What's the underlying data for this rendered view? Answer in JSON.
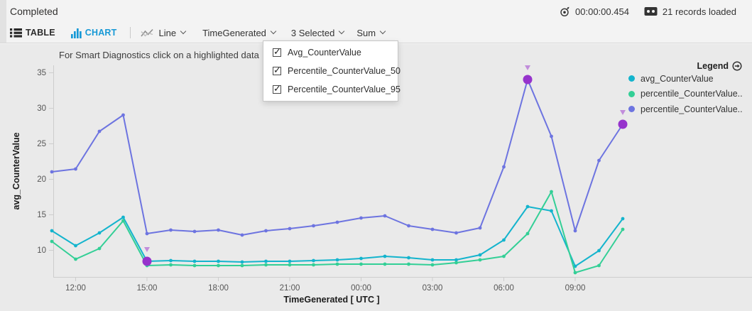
{
  "status_bar": {
    "status": "Completed",
    "elapsed_time": "00:00:00.454",
    "records_loaded": "21 records loaded"
  },
  "toolbar": {
    "accent_blue": "#1799d6",
    "table_tab": "TABLE",
    "chart_tab": "CHART",
    "chart_type_label": "Line",
    "x_axis_field_label": "TimeGenerated",
    "y_axis_fields_label": "3 Selected",
    "aggregation_label": "Sum"
  },
  "dropdown": {
    "items": [
      {
        "label": "Avg_CounterValue",
        "checked": true
      },
      {
        "label": "Percentile_CounterValue_50",
        "checked": true
      },
      {
        "label": "Percentile_CounterValue_95",
        "checked": true
      }
    ]
  },
  "chart": {
    "title": "For Smart Diagnostics click on a highlighted data",
    "legend_title": "Legend",
    "legend": [
      {
        "label": "avg_CounterValue",
        "color": "#14b4cd"
      },
      {
        "label": "percentile_CounterValue..",
        "color": "#33cf96"
      },
      {
        "label": "percentile_CounterValue..",
        "color": "#6d74e0"
      }
    ]
  },
  "chart_data": {
    "type": "line",
    "xlabel": "TimeGenerated [ UTC ]",
    "ylabel": "avg_CounterValue",
    "ylim": [
      6.2,
      35.8
    ],
    "grid": false,
    "legend_position": "top-right",
    "y_ticks": [
      10,
      15,
      20,
      25,
      30,
      35
    ],
    "x_tick_labels": [
      "12:00",
      "15:00",
      "18:00",
      "21:00",
      "00:00",
      "03:00",
      "06:00",
      "09:00"
    ],
    "x_tick_indices": [
      1,
      4,
      7,
      10,
      13,
      16,
      19,
      22
    ],
    "x": [
      "11:00",
      "12:00",
      "13:00",
      "14:00",
      "15:00",
      "16:00",
      "17:00",
      "18:00",
      "19:00",
      "20:00",
      "21:00",
      "22:00",
      "23:00",
      "00:00",
      "01:00",
      "02:00",
      "03:00",
      "04:00",
      "05:00",
      "06:00",
      "07:00",
      "08:00",
      "09:00",
      "10:00",
      "11:00"
    ],
    "series": [
      {
        "name": "avg_CounterValue",
        "color": "#14b4cd",
        "values": [
          12.7,
          10.6,
          12.4,
          14.6,
          8.4,
          8.5,
          8.4,
          8.4,
          8.3,
          8.4,
          8.4,
          8.5,
          8.6,
          8.8,
          9.1,
          8.9,
          8.6,
          8.6,
          9.3,
          11.4,
          16.1,
          15.5,
          7.7,
          9.9,
          14.4
        ]
      },
      {
        "name": "percentile_CounterValue_50",
        "color": "#33cf96",
        "values": [
          11.2,
          8.7,
          10.2,
          14.1,
          7.8,
          7.9,
          7.8,
          7.8,
          7.8,
          7.9,
          7.9,
          7.9,
          8.0,
          8.0,
          8.0,
          8.0,
          7.9,
          8.2,
          8.6,
          9.1,
          12.3,
          18.2,
          6.8,
          7.8,
          12.9
        ]
      },
      {
        "name": "percentile_CounterValue_95",
        "color": "#6d74e0",
        "values": [
          21.0,
          21.4,
          26.7,
          29.0,
          12.3,
          12.8,
          12.6,
          12.8,
          12.1,
          12.7,
          13.0,
          13.4,
          13.9,
          14.5,
          14.8,
          13.4,
          12.9,
          12.4,
          13.1,
          21.7,
          34.0,
          26.0,
          12.7,
          22.6,
          27.7
        ]
      }
    ],
    "highlighted_points": [
      {
        "series": 0,
        "index": 4
      },
      {
        "series": 2,
        "index": 20
      },
      {
        "series": 2,
        "index": 24
      }
    ],
    "highlight_color": "#9633cc",
    "highlight_marker_color": "#c18ddb"
  }
}
